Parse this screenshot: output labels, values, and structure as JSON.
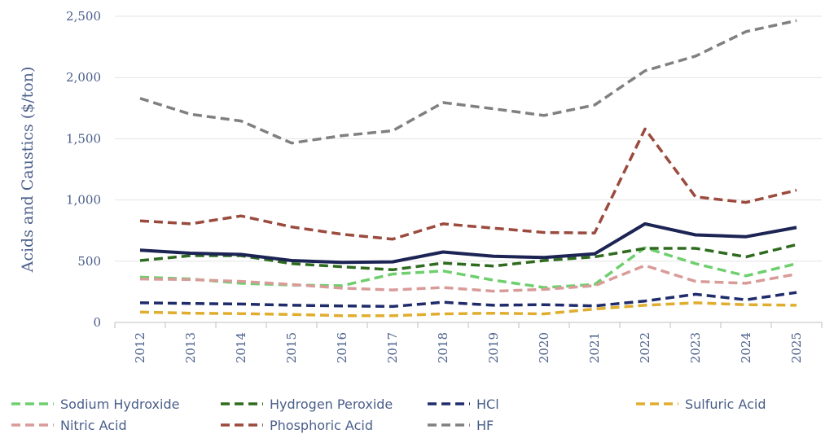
{
  "chart_data": {
    "type": "line",
    "ylabel": "Acids and Caustics ($/ton)",
    "xlabel": "",
    "title": "",
    "ylim": [
      0,
      2500
    ],
    "y_ticks": [
      0,
      500,
      1000,
      1500,
      2000,
      2500
    ],
    "y_tick_labels": [
      "0",
      "500",
      "1,000",
      "1,500",
      "2,000",
      "2,500"
    ],
    "categories": [
      "2012",
      "2013",
      "2014",
      "2015",
      "2016",
      "2017",
      "2018",
      "2019",
      "2020",
      "2021",
      "2022",
      "2023",
      "2024",
      "2025"
    ],
    "grid": "horizontal",
    "legend_position": "bottom",
    "series": [
      {
        "name": "Sodium Hydroxide",
        "color": "#6fcf6f",
        "dashed": true,
        "legend": true,
        "values": [
          370,
          355,
          320,
          305,
          300,
          395,
          420,
          345,
          285,
          310,
          610,
          480,
          380,
          480
        ]
      },
      {
        "name": "Hydrogen Peroxide",
        "color": "#2e6b1e",
        "dashed": true,
        "legend": true,
        "values": [
          505,
          545,
          545,
          480,
          455,
          430,
          485,
          460,
          505,
          535,
          605,
          605,
          535,
          635
        ]
      },
      {
        "name": "HCl",
        "color": "#1f2c6b",
        "dashed": true,
        "legend": true,
        "values": [
          160,
          155,
          150,
          140,
          135,
          130,
          165,
          140,
          145,
          135,
          175,
          230,
          185,
          245
        ]
      },
      {
        "name": "Sulfuric Acid",
        "color": "#e0ad2f",
        "dashed": true,
        "legend": true,
        "values": [
          85,
          75,
          72,
          65,
          55,
          55,
          70,
          75,
          70,
          110,
          140,
          160,
          145,
          140
        ]
      },
      {
        "name": "Nitric Acid",
        "color": "#d89b98",
        "dashed": true,
        "legend": true,
        "values": [
          355,
          350,
          335,
          310,
          280,
          265,
          285,
          255,
          270,
          300,
          465,
          335,
          320,
          395
        ]
      },
      {
        "name": "Phosphoric Acid",
        "color": "#9b4a3e",
        "dashed": true,
        "legend": true,
        "values": [
          830,
          805,
          870,
          780,
          720,
          680,
          805,
          770,
          735,
          730,
          1580,
          1025,
          980,
          1080
        ]
      },
      {
        "name": "HF",
        "color": "#808080",
        "dashed": true,
        "legend": true,
        "values": [
          1830,
          1700,
          1645,
          1465,
          1525,
          1565,
          1795,
          1745,
          1690,
          1775,
          2055,
          2175,
          2375,
          2465
        ]
      },
      {
        "color": "#1c2454",
        "dashed": false,
        "legend": false,
        "values": [
          590,
          565,
          555,
          505,
          490,
          495,
          575,
          540,
          530,
          560,
          805,
          715,
          700,
          775
        ]
      }
    ]
  }
}
